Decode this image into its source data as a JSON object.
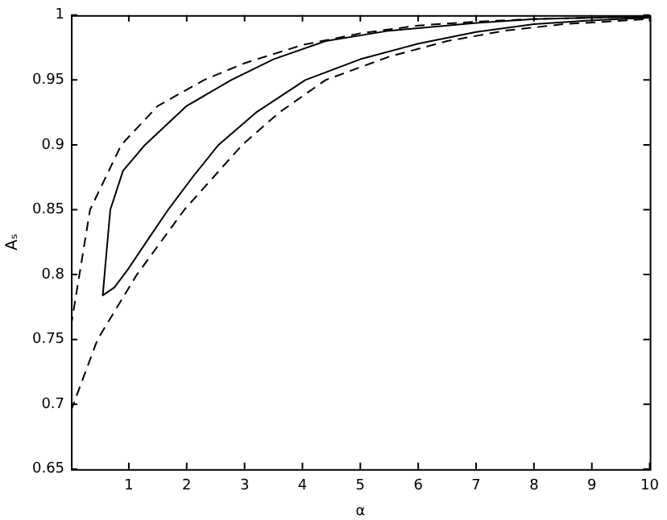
{
  "chart_data": {
    "type": "line",
    "xlabel": "α",
    "ylabel": "Aₛ",
    "xlim": [
      0,
      10
    ],
    "xticks": [
      1,
      2,
      3,
      4,
      5,
      6,
      7,
      8,
      9,
      10
    ],
    "ylim": [
      0.65,
      1
    ],
    "yticks": [
      0.65,
      0.7,
      0.75,
      0.8,
      0.85,
      0.9,
      0.95,
      1
    ],
    "grid": false,
    "legend": false,
    "marker": "none",
    "series": [
      {
        "color": "#000000",
        "line_style": "dashed",
        "x": [
          0,
          0.33,
          0.87,
          1.5,
          2.3,
          3,
          4,
          5,
          6,
          7,
          8,
          9,
          10
        ],
        "values": [
          0.76,
          0.85,
          0.9,
          0.93,
          0.95,
          0.963,
          0.977,
          0.986,
          0.992,
          0.995,
          0.997,
          0.998,
          0.999
        ]
      },
      {
        "color": "#000000",
        "line_style": "solid",
        "x": [
          10,
          9,
          8,
          7,
          6,
          5,
          4.05,
          3.2,
          2.55,
          2.1,
          1.68,
          1.36,
          1,
          0.75,
          0.55,
          0.6,
          0.68,
          0.9,
          1.28,
          2,
          2.77,
          3.5,
          4.4,
          5.5,
          7,
          8,
          10
        ],
        "values": [
          0.998,
          0.996,
          0.993,
          0.987,
          0.978,
          0.966,
          0.95,
          0.925,
          0.9,
          0.875,
          0.85,
          0.829,
          0.805,
          0.79,
          0.784,
          0.81,
          0.85,
          0.88,
          0.9,
          0.93,
          0.95,
          0.966,
          0.98,
          0.988,
          0.994,
          0.997,
          0.999
        ]
      },
      {
        "color": "#000000",
        "line_style": "dashed",
        "x": [
          0,
          0.46,
          1.14,
          1.96,
          2.96,
          3.6,
          4.4,
          5.5,
          6.5,
          7.5,
          8.5,
          10
        ],
        "values": [
          0.695,
          0.75,
          0.8,
          0.85,
          0.9,
          0.925,
          0.95,
          0.968,
          0.98,
          0.988,
          0.993,
          0.997
        ]
      }
    ]
  }
}
